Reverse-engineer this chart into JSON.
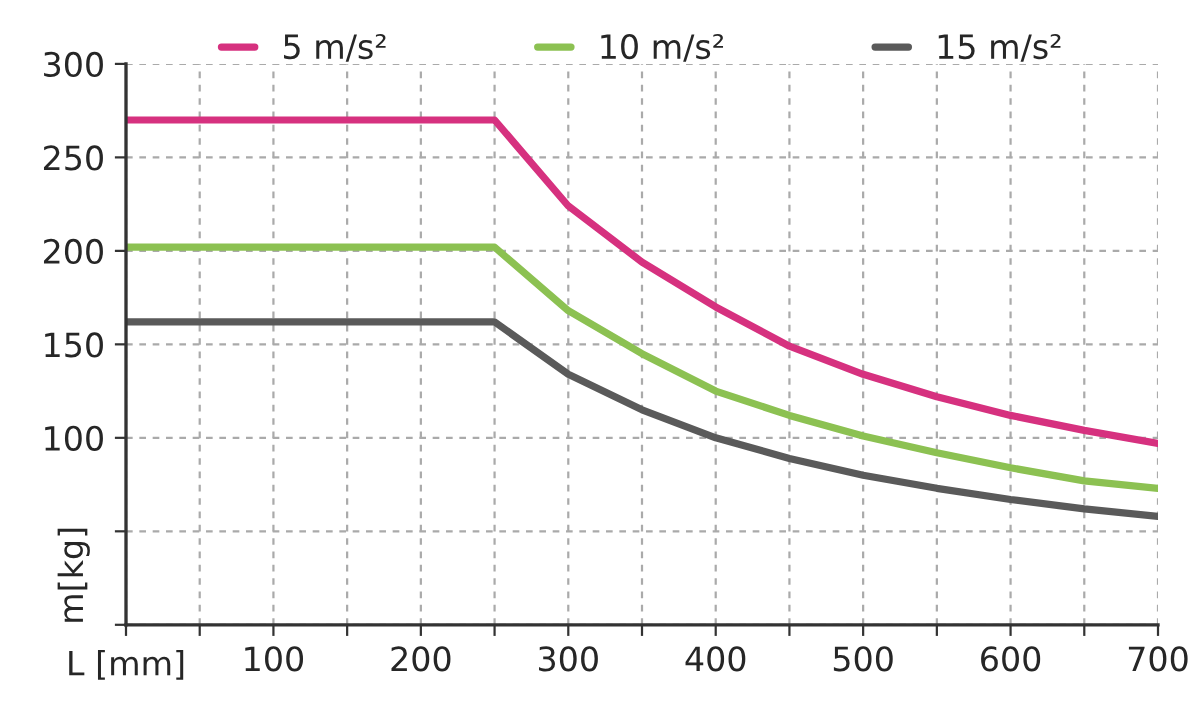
{
  "chart_data": {
    "type": "line",
    "xlabel": "L [mm]",
    "ylabel": "m[kg]",
    "x": [
      0,
      250,
      300,
      350,
      400,
      450,
      500,
      550,
      600,
      650,
      700
    ],
    "series": [
      {
        "name": "5 m/s²",
        "color": "#d6317f",
        "values": [
          270,
          270,
          224,
          194,
          170,
          149,
          134,
          122,
          112,
          104,
          97
        ]
      },
      {
        "name": "10 m/s²",
        "color": "#8cc152",
        "values": [
          202,
          202,
          168,
          145,
          125,
          112,
          101,
          92,
          84,
          77,
          73
        ]
      },
      {
        "name": "15 m/s²",
        "color": "#5a5a5a",
        "values": [
          162,
          162,
          134,
          115,
          100,
          89,
          80,
          73,
          67,
          62,
          58
        ]
      }
    ],
    "xlim": [
      0,
      700
    ],
    "ylim": [
      0,
      300
    ],
    "xticks": [
      {
        "value": 0,
        "label": null
      },
      {
        "value": 50,
        "label": null
      },
      100,
      {
        "value": 150,
        "label": null
      },
      200,
      {
        "value": 250,
        "label": null
      },
      300,
      {
        "value": 350,
        "label": null
      },
      400,
      {
        "value": 450,
        "label": null
      },
      500,
      {
        "value": 550,
        "label": null
      },
      600,
      {
        "value": 650,
        "label": null
      },
      700
    ],
    "yticks": [
      {
        "value": 0,
        "label": null
      },
      {
        "value": 50,
        "label": null
      },
      100,
      150,
      200,
      250,
      300
    ],
    "grid": true,
    "legend": "top",
    "marker": "none",
    "line_style": "solid"
  }
}
